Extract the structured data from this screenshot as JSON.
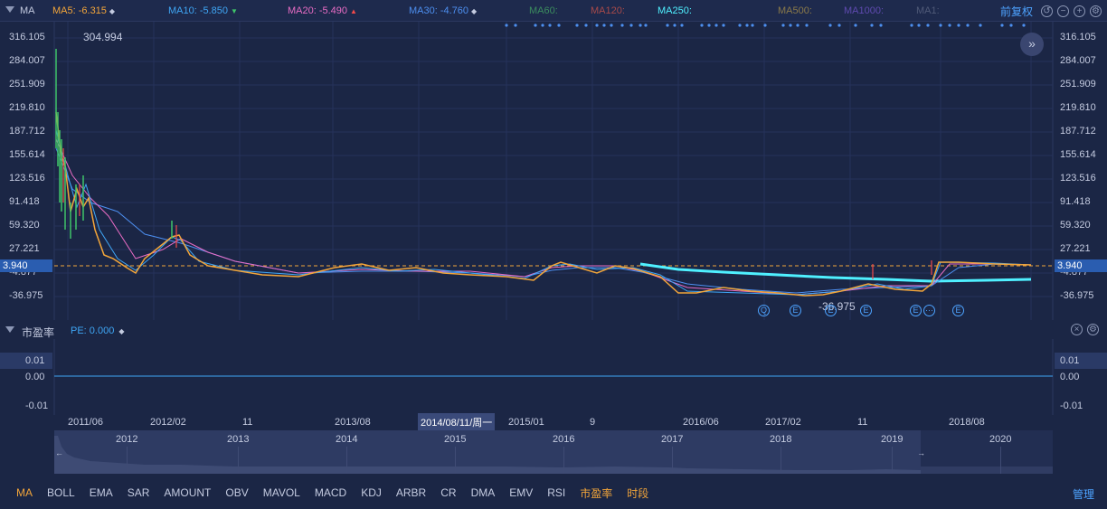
{
  "toolbar": {
    "indicator": "MA",
    "ma_items": [
      {
        "label": "MA5: -6.315",
        "color": "#f2a53a",
        "arrow": "◆"
      },
      {
        "label": "MA10: -5.850",
        "color": "#3fa6f5",
        "arrow": "▼"
      },
      {
        "label": "MA20: -5.490",
        "color": "#e86cc4",
        "arrow": "▲"
      },
      {
        "label": "MA30: -4.760",
        "color": "#4d8ff0",
        "arrow": "◆"
      },
      {
        "label": "MA60:",
        "color": "#3b8c5e",
        "arrow": ""
      },
      {
        "label": "MA120:",
        "color": "#a84a4a",
        "arrow": ""
      },
      {
        "label": "MA250:",
        "color": "#4ff0ff",
        "arrow": ""
      },
      {
        "label": "MA500:",
        "color": "#8b7a4a",
        "arrow": ""
      },
      {
        "label": "MA1000:",
        "color": "#5f4ab0",
        "arrow": ""
      },
      {
        "label": "MA1:",
        "color": "#505a78",
        "arrow": ""
      }
    ],
    "restore_link": "前复权"
  },
  "main_chart": {
    "peak_label": "304.994",
    "low_label": "-36.975",
    "current_value": "3.940",
    "y_ticks": [
      "316.105",
      "284.007",
      "251.909",
      "219.810",
      "187.712",
      "155.614",
      "123.516",
      "91.418",
      "59.320",
      "27.221",
      "-4.877",
      "-36.975"
    ],
    "event_markers": [
      "Q",
      "E",
      "E",
      "E",
      "E",
      "···",
      "E"
    ]
  },
  "pe_panel": {
    "title": "市盈率",
    "value_label": "PE: 0.000",
    "y_ticks": [
      "0.01",
      "0.00",
      "-0.01"
    ]
  },
  "x_axis": {
    "labels": [
      "2011/06",
      "2012/02",
      "11",
      "2013/08",
      "2015/01",
      "9",
      "2016/06",
      "2017/02",
      "11",
      "2018/08"
    ],
    "crosshair_label": "2014/08/11/周一"
  },
  "navigator": {
    "years": [
      "2012",
      "2013",
      "2014",
      "2015",
      "2016",
      "2017",
      "2018",
      "2019",
      "2020"
    ]
  },
  "bottom_tabs": [
    "MA",
    "BOLL",
    "EMA",
    "SAR",
    "AMOUNT",
    "OBV",
    "MAVOL",
    "MACD",
    "KDJ",
    "ARBR",
    "CR",
    "DMA",
    "EMV",
    "RSI",
    "市盈率",
    "时段"
  ],
  "manage_link": "管理",
  "colors": {
    "background": "#1b2645",
    "accent": "#f2a53a",
    "link": "#4da3ff",
    "cyan": "#4ff0ff"
  }
}
